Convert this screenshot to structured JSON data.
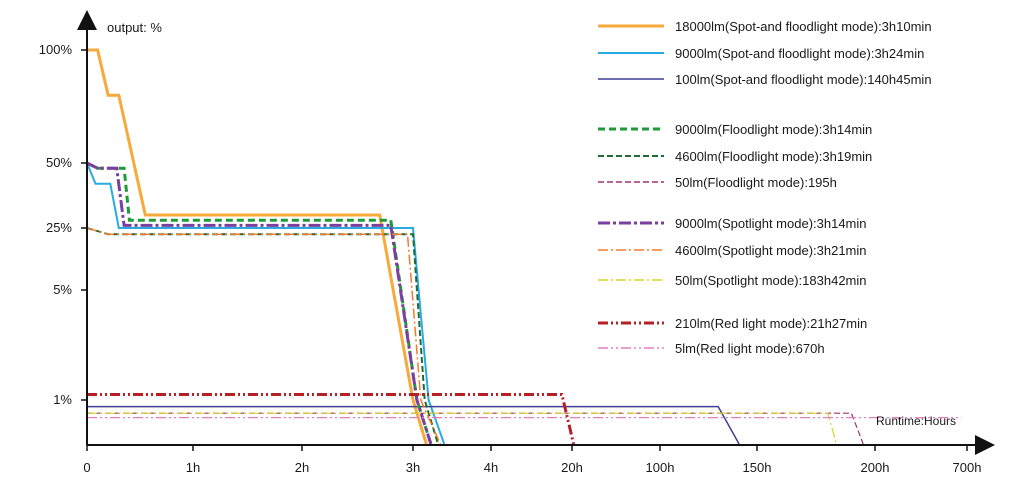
{
  "chart_data": {
    "type": "line",
    "title": "",
    "ylabel": "output: %",
    "xlabel": "Runtime:Hours",
    "x_ticks": [
      "0",
      "1h",
      "2h",
      "3h",
      "4h",
      "20h",
      "100h",
      "150h",
      "200h",
      "700h"
    ],
    "y_ticks": [
      "100%",
      "50%",
      "25%",
      "5%",
      "1%"
    ],
    "x_scale": "piecewise",
    "y_scale": "piecewise",
    "grid": false,
    "legend_position": "top-right",
    "series": [
      {
        "name": "18000lm(Spot-and floodlight mode):3h10min",
        "color": "#f7a93b",
        "dash": "",
        "width": 3,
        "points": [
          [
            "0",
            100
          ],
          [
            "0.1h",
            100
          ],
          [
            "0.2h",
            80
          ],
          [
            "0.3h",
            80
          ],
          [
            "0.55h",
            30
          ],
          [
            "2.7h",
            30
          ],
          [
            "3h",
            1
          ],
          [
            "3.17h",
            0
          ]
        ]
      },
      {
        "name": "9000lm(Spot-and floodlight mode):3h24min",
        "color": "#29abe2",
        "dash": "",
        "width": 2,
        "points": [
          [
            "0",
            50
          ],
          [
            "0.08h",
            42
          ],
          [
            "0.22h",
            42
          ],
          [
            "0.3h",
            25
          ],
          [
            "3h",
            25
          ],
          [
            "3.2h",
            1
          ],
          [
            "3.4h",
            0
          ]
        ]
      },
      {
        "name": "100lm(Spot-and floodlight mode):140h45min",
        "color": "#3f3f96",
        "dash": "",
        "width": 1.5,
        "points": [
          [
            "0",
            0.85
          ],
          [
            "130h",
            0.85
          ],
          [
            "140.75h",
            0
          ]
        ]
      },
      {
        "name": "9000lm(Floodlight mode):3h14min",
        "color": "#1e9a3a",
        "dash": "7,4",
        "width": 3,
        "points": [
          [
            "0",
            50
          ],
          [
            "0.1h",
            48
          ],
          [
            "0.35h",
            48
          ],
          [
            "0.4h",
            28
          ],
          [
            "2.8h",
            28
          ],
          [
            "3.05h",
            1
          ],
          [
            "3.23h",
            0
          ]
        ]
      },
      {
        "name": "4600lm(Floodlight mode):3h19min",
        "color": "#1e6b35",
        "dash": "6,3",
        "width": 2,
        "points": [
          [
            "0",
            25
          ],
          [
            "0.2h",
            23
          ],
          [
            "3h",
            23
          ],
          [
            "3.15h",
            1
          ],
          [
            "3.32h",
            0
          ]
        ]
      },
      {
        "name": "50lm(Floodlight mode):195h",
        "color": "#a0327a",
        "dash": "6,3",
        "width": 1.2,
        "points": [
          [
            "0",
            0.7
          ],
          [
            "190h",
            0.7
          ],
          [
            "195h",
            0
          ]
        ]
      },
      {
        "name": "9000lm(Spotlight mode):3h14min",
        "color": "#7a3fa0",
        "dash": "12,3,3,3",
        "width": 3,
        "points": [
          [
            "0",
            50
          ],
          [
            "0.1h",
            48
          ],
          [
            "0.28h",
            48
          ],
          [
            "0.35h",
            26
          ],
          [
            "2.8h",
            26
          ],
          [
            "3.05h",
            1
          ],
          [
            "3.23h",
            0
          ]
        ]
      },
      {
        "name": "4600lm(Spotlight mode):3h21min",
        "color": "#ef7d2e",
        "dash": "10,3,2,3",
        "width": 1.5,
        "points": [
          [
            "0",
            25
          ],
          [
            "0.2h",
            23
          ],
          [
            "2.95h",
            23
          ],
          [
            "3.1h",
            1
          ],
          [
            "3.35h",
            0
          ]
        ]
      },
      {
        "name": "50lm(Spotlight mode):183h42min",
        "color": "#d9d226",
        "dash": "10,3,2,3",
        "width": 1.2,
        "points": [
          [
            "0",
            0.7
          ],
          [
            "180h",
            0.7
          ],
          [
            "183.7h",
            0
          ]
        ]
      },
      {
        "name": "210lm(Red light mode):21h27min",
        "color": "#b52025",
        "dash": "10,3,2,3,2,3",
        "width": 3,
        "points": [
          [
            "0",
            1.2
          ],
          [
            "18h",
            1.2
          ],
          [
            "21.45h",
            0
          ]
        ]
      },
      {
        "name": "5lm(Red light mode):670h",
        "color": "#e37fc2",
        "dash": "10,3,2,3,2,3",
        "width": 1.2,
        "points": [
          [
            "0",
            0.6
          ],
          [
            "670h",
            0.6
          ]
        ]
      }
    ]
  }
}
